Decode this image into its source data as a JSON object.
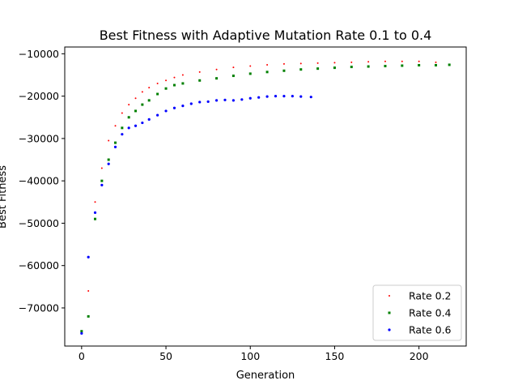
{
  "chart_data": {
    "type": "scatter",
    "title": "Best Fitness with Adaptive Mutation Rate 0.1 to 0.4",
    "xlabel": "Generation",
    "ylabel": "Best Fitness",
    "xlim": [
      -10,
      228
    ],
    "ylim": [
      -79000,
      -8400
    ],
    "xticks": [
      0,
      50,
      100,
      150,
      200
    ],
    "xtick_labels": [
      "0",
      "50",
      "100",
      "150",
      "200"
    ],
    "yticks": [
      -70000,
      -60000,
      -50000,
      -40000,
      -30000,
      -20000,
      -10000
    ],
    "ytick_labels": [
      "−70000",
      "−60000",
      "−50000",
      "−40000",
      "−30000",
      "−20000",
      "−10000"
    ],
    "grid": false,
    "legend_position": "lower right",
    "series": [
      {
        "name": "Rate 0.2",
        "color": "#ff0000",
        "marker": "point",
        "x": [
          0,
          4,
          8,
          12,
          16,
          20,
          24,
          28,
          32,
          36,
          40,
          45,
          50,
          55,
          60,
          70,
          80,
          90,
          100,
          110,
          120,
          130,
          140,
          150,
          160,
          170,
          180,
          190,
          200,
          210
        ],
        "y": [
          -75500,
          -66000,
          -45000,
          -37000,
          -30500,
          -27000,
          -24000,
          -22000,
          -20500,
          -19000,
          -18000,
          -17000,
          -16300,
          -15600,
          -15000,
          -14300,
          -13700,
          -13200,
          -12900,
          -12600,
          -12400,
          -12300,
          -12200,
          -12100,
          -12000,
          -11900,
          -11800,
          -11800,
          -11800,
          -12000
        ]
      },
      {
        "name": "Rate 0.4",
        "color": "#008000",
        "marker": "square",
        "x": [
          0,
          4,
          8,
          12,
          16,
          20,
          24,
          28,
          32,
          36,
          40,
          45,
          50,
          55,
          60,
          70,
          80,
          90,
          100,
          110,
          120,
          130,
          140,
          150,
          160,
          170,
          180,
          190,
          200,
          210,
          218
        ],
        "y": [
          -75500,
          -72000,
          -49000,
          -40000,
          -35000,
          -31000,
          -27500,
          -25000,
          -23500,
          -22000,
          -21000,
          -19500,
          -18200,
          -17400,
          -17000,
          -16300,
          -15800,
          -15200,
          -14700,
          -14300,
          -14000,
          -13700,
          -13500,
          -13300,
          -13100,
          -13000,
          -12900,
          -12800,
          -12700,
          -12700,
          -12600
        ]
      },
      {
        "name": "Rate 0.6",
        "color": "#0000ff",
        "marker": "circle",
        "x": [
          0,
          4,
          8,
          12,
          16,
          20,
          24,
          28,
          32,
          36,
          40,
          45,
          50,
          55,
          60,
          65,
          70,
          75,
          80,
          85,
          90,
          95,
          100,
          105,
          110,
          115,
          120,
          125,
          130,
          136
        ],
        "y": [
          -76000,
          -58000,
          -47500,
          -41000,
          -36000,
          -32000,
          -29000,
          -27500,
          -27000,
          -26300,
          -25500,
          -24500,
          -23500,
          -22800,
          -22300,
          -21800,
          -21400,
          -21300,
          -21000,
          -20900,
          -21000,
          -20800,
          -20500,
          -20300,
          -20100,
          -20000,
          -20000,
          -20000,
          -20100,
          -20200
        ]
      }
    ]
  }
}
